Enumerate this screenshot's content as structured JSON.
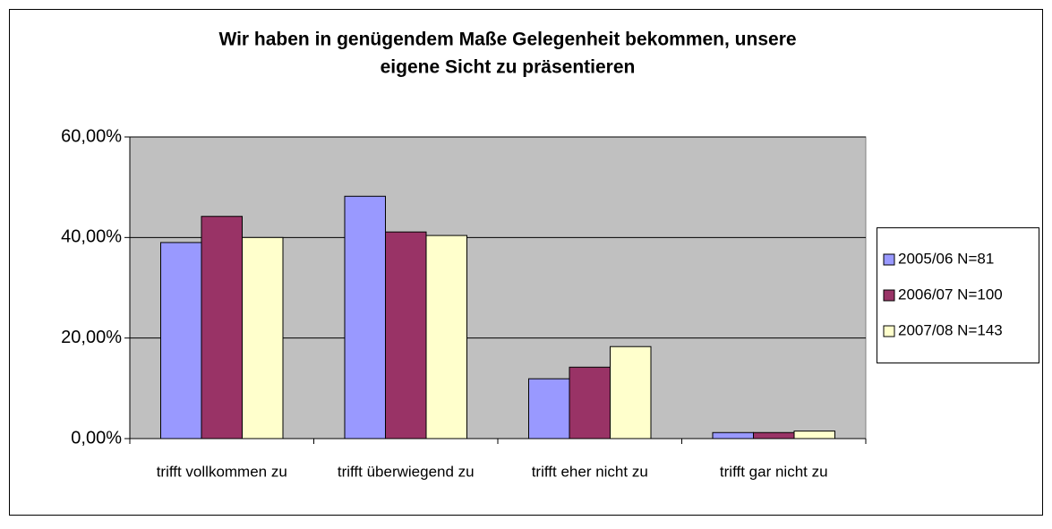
{
  "chart_data": {
    "type": "bar",
    "title": [
      "Wir haben in genügendem Maße Gelegenheit bekommen, unsere",
      "eigene Sicht zu präsentieren"
    ],
    "categories": [
      "trifft vollkommen zu",
      "trifft überwiegend zu",
      "trifft eher nicht zu",
      "trifft gar nicht zu"
    ],
    "series": [
      {
        "name": "2005/06 N=81",
        "color": "#9999ff",
        "values": [
          39.0,
          48.2,
          11.9,
          1.2
        ]
      },
      {
        "name": "2006/07 N=100",
        "color": "#993366",
        "values": [
          44.2,
          41.1,
          14.2,
          1.2
        ]
      },
      {
        "name": "2007/08 N=143",
        "color": "#ffffcc",
        "values": [
          40.0,
          40.4,
          18.3,
          1.5
        ]
      }
    ],
    "ylim": [
      0,
      60
    ],
    "yticks": [
      {
        "value": 0,
        "label": "0,00%"
      },
      {
        "value": 20,
        "label": "20,00%"
      },
      {
        "value": 40,
        "label": "40,00%"
      },
      {
        "value": 60,
        "label": "60,00%"
      }
    ],
    "grid": true,
    "legend": "right",
    "plot_background": "#c0c0c0"
  }
}
